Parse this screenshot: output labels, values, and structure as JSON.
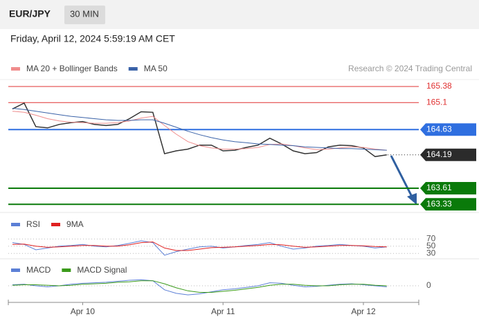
{
  "header": {
    "symbol": "EUR/JPY",
    "timeframe": "30 MIN",
    "datetime": "Friday, April 12, 2024 5:59:19 AM CET"
  },
  "chart_data": [
    {
      "type": "line",
      "annotation": "Research © 2024 Trading Central",
      "categories": [
        null,
        null,
        null,
        null,
        null,
        null,
        "Apr 10",
        null,
        null,
        null,
        null,
        null,
        null,
        null,
        null,
        null,
        null,
        null,
        "Apr 11",
        null,
        null,
        null,
        null,
        null,
        null,
        null,
        null,
        null,
        null,
        null,
        "Apr 12",
        null,
        null
      ],
      "ylim": [
        163.2,
        165.5
      ],
      "levels": [
        {
          "value": 165.38,
          "color": "#e03030",
          "tag": false
        },
        {
          "value": 165.1,
          "color": "#e03030",
          "tag": false
        },
        {
          "value": 164.63,
          "color": "#2f6fe0",
          "tag": true
        },
        {
          "value": 164.19,
          "color": "#2b2b2b",
          "tag": true,
          "dotted": true
        },
        {
          "value": 163.61,
          "color": "#0a7a0a",
          "tag": true
        },
        {
          "value": 163.33,
          "color": "#0a7a0a",
          "tag": true
        }
      ],
      "series": [
        {
          "color": "#333333",
          "values": [
            164.99,
            165.09,
            164.68,
            164.66,
            164.72,
            164.75,
            164.77,
            164.72,
            164.7,
            164.72,
            164.82,
            164.94,
            164.93,
            164.21,
            164.26,
            164.29,
            164.36,
            164.36,
            164.26,
            164.27,
            164.32,
            164.36,
            164.48,
            164.38,
            164.26,
            164.21,
            164.23,
            164.33,
            164.36,
            164.35,
            164.31,
            164.16,
            164.19
          ]
        },
        {
          "name": "MA 20 + Bollinger Bands",
          "color": "#f08c8c",
          "values": [
            164.95,
            164.93,
            164.88,
            164.82,
            164.78,
            164.76,
            164.75,
            164.74,
            164.74,
            164.75,
            164.78,
            164.83,
            164.86,
            164.7,
            164.55,
            164.42,
            164.35,
            164.31,
            164.29,
            164.29,
            164.3,
            164.32,
            164.37,
            164.38,
            164.35,
            164.31,
            164.28,
            164.29,
            164.31,
            164.33,
            164.32,
            164.29,
            164.27
          ]
        },
        {
          "name": "MA 50",
          "color": "#3a62a8",
          "values": [
            165.0,
            164.98,
            164.95,
            164.92,
            164.89,
            164.86,
            164.84,
            164.82,
            164.8,
            164.79,
            164.79,
            164.8,
            164.8,
            164.74,
            164.67,
            164.6,
            164.54,
            164.49,
            164.45,
            164.42,
            164.4,
            164.38,
            164.37,
            164.36,
            164.35,
            164.33,
            164.32,
            164.31,
            164.3,
            164.3,
            164.29,
            164.28,
            164.27
          ]
        }
      ]
    },
    {
      "type": "line",
      "ylim": [
        15,
        90
      ],
      "yticks": [
        70,
        50,
        30
      ],
      "series": [
        {
          "name": "RSI",
          "color": "#5b7fd6",
          "values": [
            60,
            55,
            40,
            45,
            50,
            52,
            55,
            50,
            48,
            52,
            58,
            65,
            60,
            25,
            35,
            42,
            48,
            50,
            45,
            48,
            52,
            55,
            60,
            50,
            42,
            45,
            50,
            52,
            55,
            52,
            50,
            45,
            48
          ]
        },
        {
          "name": "9MA",
          "color": "#e02020",
          "values": [
            55,
            56,
            50,
            47,
            48,
            50,
            52,
            52,
            50,
            50,
            54,
            60,
            62,
            45,
            38,
            38,
            42,
            46,
            47,
            48,
            50,
            52,
            55,
            54,
            50,
            47,
            48,
            50,
            52,
            52,
            51,
            49,
            48
          ]
        }
      ]
    },
    {
      "type": "line",
      "ylim": [
        -0.22,
        0.22
      ],
      "yticks": [
        0
      ],
      "series": [
        {
          "name": "MACD",
          "color": "#5b7fd6",
          "values": [
            0.02,
            0.03,
            0.0,
            -0.02,
            0.0,
            0.03,
            0.05,
            0.06,
            0.07,
            0.09,
            0.11,
            0.12,
            0.1,
            -0.08,
            -0.15,
            -0.18,
            -0.16,
            -0.12,
            -0.08,
            -0.06,
            -0.03,
            0.0,
            0.06,
            0.05,
            0.01,
            -0.02,
            -0.01,
            0.01,
            0.03,
            0.04,
            0.02,
            0.0,
            -0.02
          ]
        },
        {
          "name": "MACD Signal",
          "color": "#3a9a1a",
          "values": [
            0.01,
            0.02,
            0.02,
            0.01,
            0.0,
            0.01,
            0.03,
            0.04,
            0.05,
            0.07,
            0.08,
            0.1,
            0.1,
            0.04,
            -0.04,
            -0.1,
            -0.13,
            -0.13,
            -0.11,
            -0.09,
            -0.06,
            -0.03,
            0.01,
            0.03,
            0.03,
            0.01,
            0.0,
            0.0,
            0.02,
            0.03,
            0.03,
            0.01,
            0.0
          ]
        }
      ]
    }
  ]
}
